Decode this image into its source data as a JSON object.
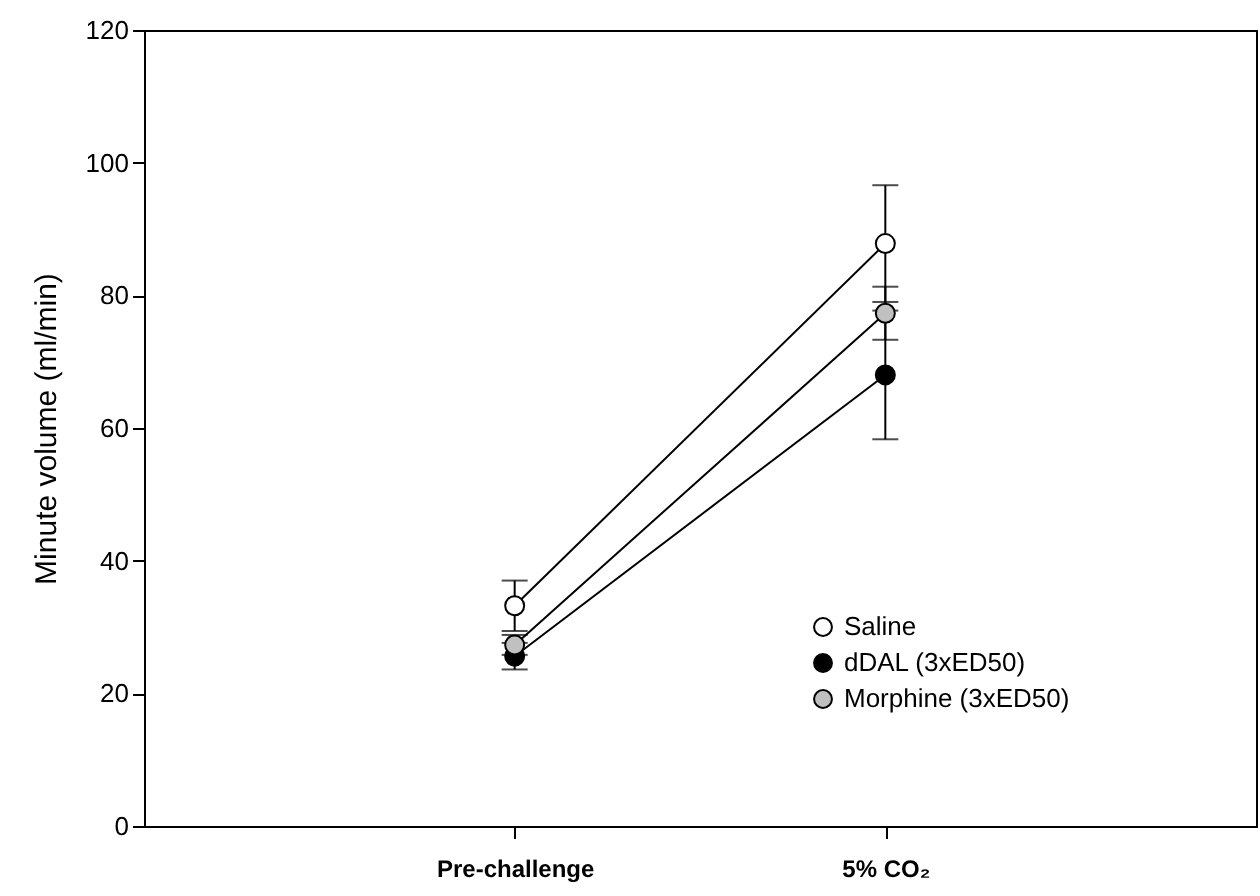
{
  "chart_data": {
    "type": "line",
    "xlabel": null,
    "ylabel": "Minute volume (ml/min)",
    "categories": [
      "Pre-challenge",
      "5% CO₂"
    ],
    "series": [
      {
        "name": "Saline",
        "color": "#ffffff",
        "values": [
          33.2,
          87.8
        ],
        "errors": [
          3.8,
          8.8
        ]
      },
      {
        "name": "dDAL (3xED50)",
        "color": "#000000",
        "values": [
          25.6,
          68.0
        ],
        "errors": [
          2.0,
          9.7
        ]
      },
      {
        "name": "Morphine (3xED50)",
        "color": "#c0c0c0",
        "values": [
          27.3,
          77.3
        ],
        "errors": [
          1.5,
          4.0
        ]
      }
    ],
    "ylim": [
      0,
      120
    ],
    "yticks": [
      0,
      20,
      40,
      60,
      80,
      100,
      120
    ],
    "grid": false,
    "legend": "bottom right",
    "marker": "circle",
    "line_style": "solid"
  }
}
